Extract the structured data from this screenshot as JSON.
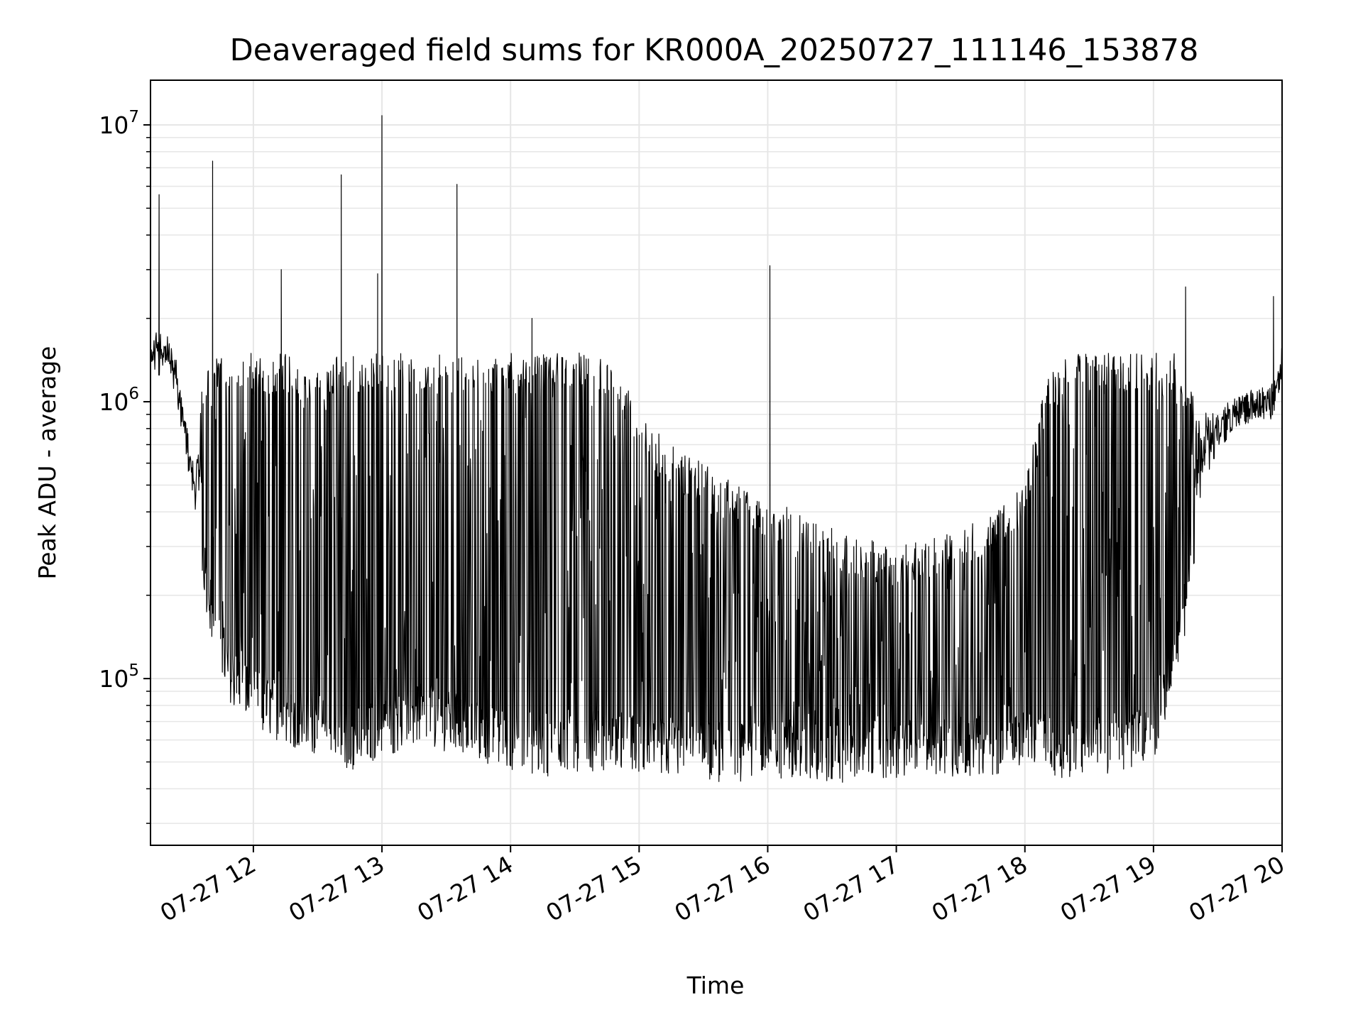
{
  "chart_data": {
    "type": "line",
    "title": "Deaveraged field sums for KR000A_20250727_111146_153878",
    "xlabel": "Time",
    "ylabel": "Peak ADU - average",
    "x_scale": "time",
    "y_scale": "log",
    "xlim": [
      "2025-07-27 11:12",
      "2025-07-27 20:00"
    ],
    "ylim": [
      25000,
      14500000
    ],
    "grid": true,
    "line_color": "#000000",
    "grid_color": "#e6e6e6",
    "x_tick_labels": [
      "07-27 12",
      "07-27 13",
      "07-27 14",
      "07-27 15",
      "07-27 16",
      "07-27 17",
      "07-27 18",
      "07-27 19",
      "07-27 20"
    ],
    "y_tick_labels": [
      {
        "base": "10",
        "exp": "5",
        "value": 100000
      },
      {
        "base": "10",
        "exp": "6",
        "value": 1000000
      },
      {
        "base": "10",
        "exp": "7",
        "value": 10000000
      }
    ],
    "series": [
      {
        "x": [
          "2025-07-27 11:12",
          "2025-07-27 11:15",
          "2025-07-27 11:18",
          "2025-07-27 11:21",
          "2025-07-27 11:24",
          "2025-07-27 11:27",
          "2025-07-27 11:30",
          "2025-07-27 11:33",
          "2025-07-27 11:36",
          "2025-07-27 11:39",
          "2025-07-27 11:42",
          "2025-07-27 11:45",
          "2025-07-27 11:48",
          "2025-07-27 11:51",
          "2025-07-27 11:54",
          "2025-07-27 11:57",
          "2025-07-27 12:00",
          "2025-07-27 12:05",
          "2025-07-27 12:10",
          "2025-07-27 12:15",
          "2025-07-27 12:20",
          "2025-07-27 12:25",
          "2025-07-27 12:30",
          "2025-07-27 12:35",
          "2025-07-27 12:40",
          "2025-07-27 12:45",
          "2025-07-27 12:50",
          "2025-07-27 12:55",
          "2025-07-27 13:00",
          "2025-07-27 13:10",
          "2025-07-27 13:20",
          "2025-07-27 13:30",
          "2025-07-27 13:40",
          "2025-07-27 13:50",
          "2025-07-27 14:00",
          "2025-07-27 14:10",
          "2025-07-27 14:20",
          "2025-07-27 14:30",
          "2025-07-27 14:40",
          "2025-07-27 14:50",
          "2025-07-27 15:00",
          "2025-07-27 15:15",
          "2025-07-27 15:30",
          "2025-07-27 15:45",
          "2025-07-27 16:00",
          "2025-07-27 16:15",
          "2025-07-27 16:30",
          "2025-07-27 16:45",
          "2025-07-27 17:00",
          "2025-07-27 17:15",
          "2025-07-27 17:30",
          "2025-07-27 17:45",
          "2025-07-27 18:00",
          "2025-07-27 18:10",
          "2025-07-27 18:20",
          "2025-07-27 18:30",
          "2025-07-27 18:40",
          "2025-07-27 18:50",
          "2025-07-27 19:00",
          "2025-07-27 19:10",
          "2025-07-27 19:20",
          "2025-07-27 19:30",
          "2025-07-27 19:40",
          "2025-07-27 19:50",
          "2025-07-27 19:55",
          "2025-07-27 20:00"
        ],
        "y_baseline": [
          1300000,
          1200000,
          1350000,
          1250000,
          1100000,
          800000,
          550000,
          420000,
          300000,
          200000,
          160000,
          130000,
          110000,
          100000,
          95000,
          90000,
          85000,
          80000,
          78000,
          75000,
          72000,
          70000,
          68000,
          65000,
          62000,
          60000,
          62000,
          64000,
          66000,
          70000,
          75000,
          70000,
          68000,
          62000,
          60000,
          58000,
          56000,
          58000,
          60000,
          58000,
          57000,
          56000,
          55000,
          54000,
          56000,
          55000,
          54000,
          55000,
          55000,
          56000,
          57000,
          58000,
          60000,
          58000,
          56000,
          57000,
          58000,
          60000,
          62000,
          120000,
          280000,
          700000,
          900000,
          950000,
          950000,
          1100000
        ],
        "y_upper": [
          1400000,
          2000000,
          1600000,
          1500000,
          1300000,
          900000,
          700000,
          500000,
          1200000,
          1400000,
          1500000,
          1500000,
          1500000,
          1500000,
          1500000,
          1500000,
          1500000,
          1500000,
          1500000,
          1500000,
          1400000,
          1300000,
          1300000,
          1300000,
          1500000,
          1500000,
          1500000,
          1500000,
          1500000,
          1500000,
          1500000,
          1500000,
          1500000,
          1500000,
          1500000,
          1500000,
          1500000,
          1500000,
          1500000,
          1400000,
          900000,
          700000,
          600000,
          500000,
          450000,
          400000,
          350000,
          320000,
          300000,
          320000,
          350000,
          400000,
          500000,
          1200000,
          1500000,
          1500000,
          1500000,
          1500000,
          1500000,
          1500000,
          1000000,
          850000,
          950000,
          1000000,
          1000000,
          1500000
        ],
        "spikes": [
          {
            "x": "2025-07-27 11:16",
            "y": 5600000
          },
          {
            "x": "2025-07-27 11:41",
            "y": 7400000
          },
          {
            "x": "2025-07-27 12:13",
            "y": 3000000
          },
          {
            "x": "2025-07-27 12:41",
            "y": 6600000
          },
          {
            "x": "2025-07-27 12:58",
            "y": 2900000
          },
          {
            "x": "2025-07-27 13:00",
            "y": 10800000
          },
          {
            "x": "2025-07-27 13:35",
            "y": 6100000
          },
          {
            "x": "2025-07-27 14:10",
            "y": 2000000
          },
          {
            "x": "2025-07-27 16:01",
            "y": 3100000
          },
          {
            "x": "2025-07-27 19:15",
            "y": 2600000
          },
          {
            "x": "2025-07-27 19:56",
            "y": 2400000
          }
        ]
      }
    ]
  }
}
